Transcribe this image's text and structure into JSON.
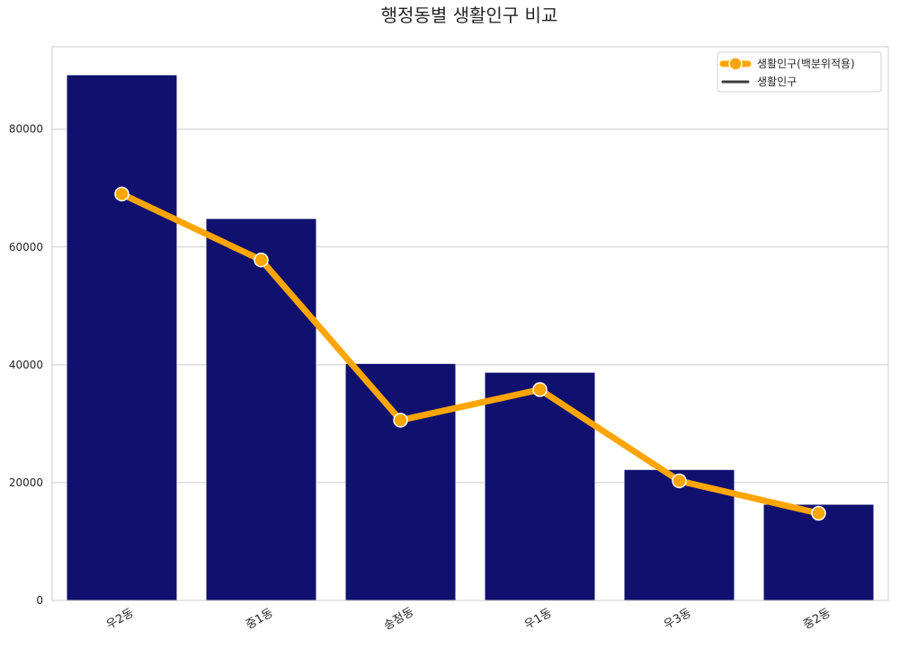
{
  "chart_data": {
    "type": "bar+line",
    "title": "행정동별 생활인구 비교",
    "categories": [
      "우2동",
      "중1동",
      "송정동",
      "우1동",
      "우3동",
      "중2동"
    ],
    "yticks": [
      0,
      20000,
      40000,
      60000,
      80000
    ],
    "ylim": [
      0,
      94000
    ],
    "grid": true,
    "legend_position": "top-right",
    "series": [
      {
        "name": "생활인구",
        "type": "bar",
        "color": "#10106f",
        "values": [
          89200,
          64800,
          40200,
          38700,
          22200,
          16300
        ]
      },
      {
        "name": "생활인구(백분위적용)",
        "type": "line",
        "color": "#ffa500",
        "values": [
          69000,
          57800,
          30600,
          35800,
          20300,
          14800
        ]
      }
    ]
  }
}
